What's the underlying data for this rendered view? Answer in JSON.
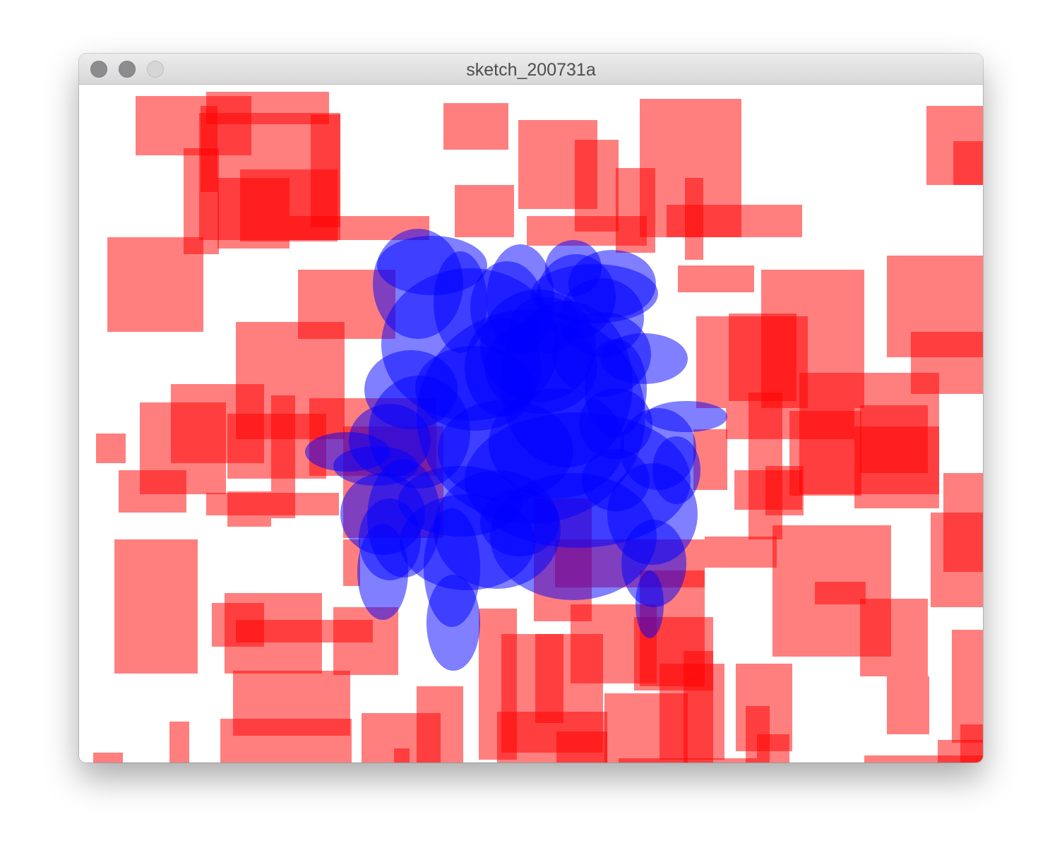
{
  "window": {
    "title": "sketch_200731a",
    "buttons": {
      "close": "close-button",
      "minimize": "minimize-button",
      "zoom": "zoom-button"
    }
  },
  "sketch": {
    "background_color": "#ffffff",
    "rect_color": "#ff0000",
    "ellipse_color": "#0000ff"
  }
}
